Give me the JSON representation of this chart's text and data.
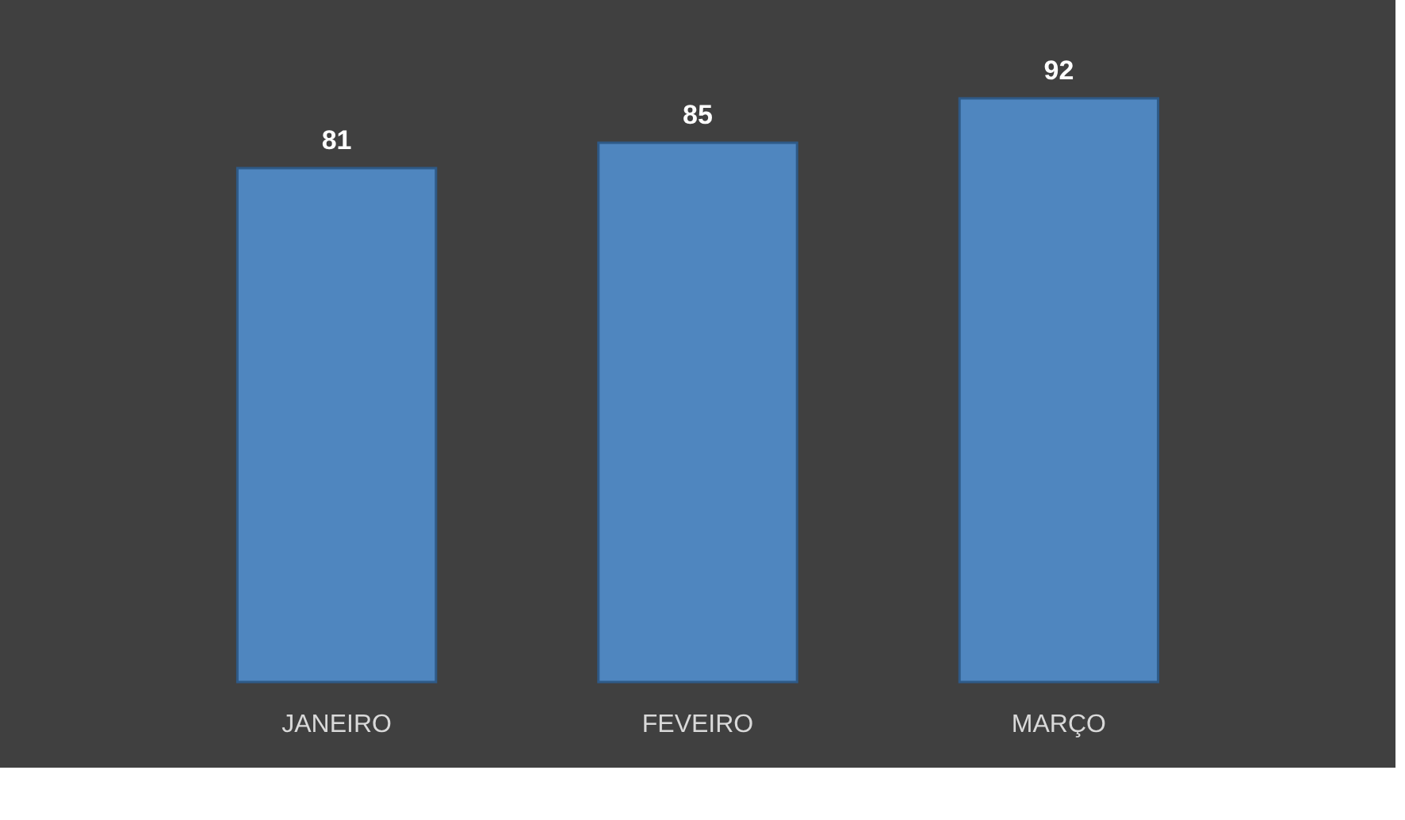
{
  "chart_data": {
    "type": "bar",
    "categories": [
      "JANEIRO",
      "FEVEIRO",
      "MARÇO"
    ],
    "values": [
      81,
      85,
      92
    ],
    "color": "#4f86bf",
    "data_labels": true,
    "tick_labels": "x"
  }
}
